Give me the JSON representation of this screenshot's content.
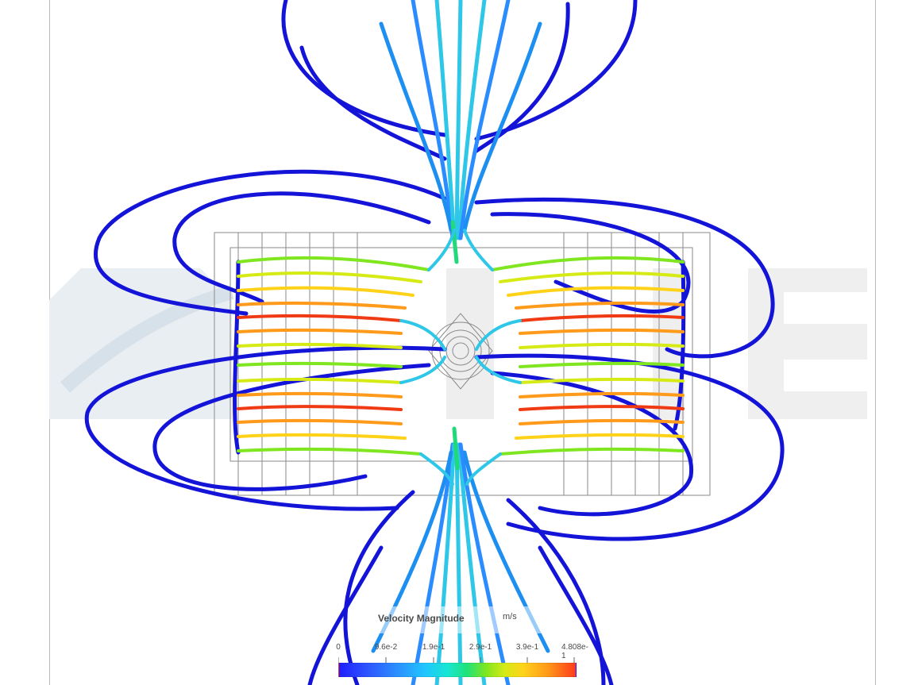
{
  "scene": {
    "legend": {
      "title": "Velocity Magnitude",
      "unit": "m/s",
      "ticks": [
        "0",
        "9.6e-2",
        "1.9e-1",
        "2.9e-1",
        "3.9e-1",
        "4.808e-1"
      ],
      "colors": [
        "#1f1fff",
        "#2d55ff",
        "#2b8cff",
        "#20c4ff",
        "#18e6d2",
        "#1fe27b",
        "#7fe61f",
        "#d6ea16",
        "#ffd21a",
        "#ff9a1a",
        "#ff3b1a"
      ]
    },
    "streamline_colors": {
      "slow": "#1414d8",
      "low": "#1d8ff0",
      "mid": "#2ec7e8",
      "high": "#1fd97a",
      "peak": "#ef3a14"
    }
  }
}
